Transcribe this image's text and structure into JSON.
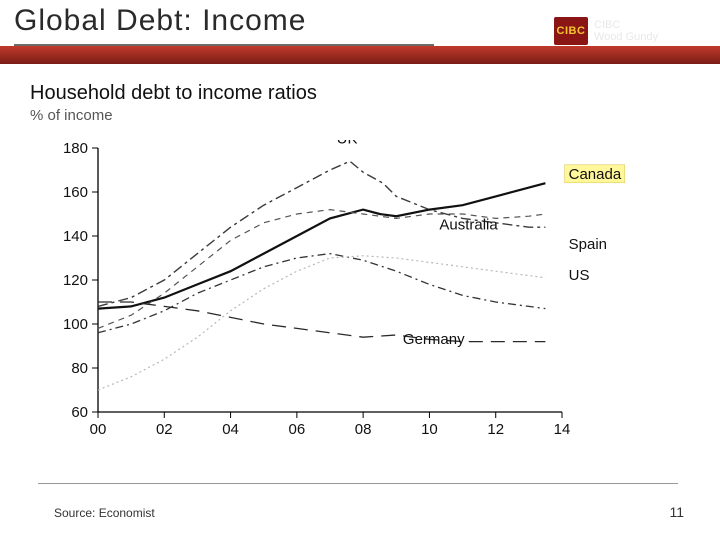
{
  "slide": {
    "title": "Global Debt: Income",
    "logo_text": "CIBC",
    "logo_sub": "Wood Gundy",
    "source": "Source: Economist",
    "page_number": "11"
  },
  "chart": {
    "type": "line",
    "title": "Household debt to income ratios",
    "subtitle": "% of income",
    "background_color": "#ffffff",
    "axis_color": "#000000",
    "xlim": [
      0,
      14
    ],
    "ylim": [
      60,
      180
    ],
    "ytick_step": 20,
    "xtick_step": 2,
    "x_ticks": [
      "00",
      "02",
      "04",
      "06",
      "08",
      "10",
      "12",
      "14"
    ],
    "y_ticks": [
      "60",
      "80",
      "100",
      "120",
      "140",
      "160",
      "180"
    ],
    "label_canada_highlight": true,
    "series": {
      "UK": {
        "label": "UK",
        "color": "#3a3a3a",
        "width": 1.4,
        "dash": "10 4 3 4",
        "label_xy": [
          7.2,
          182
        ],
        "data": [
          [
            0,
            108
          ],
          [
            1,
            112
          ],
          [
            2,
            120
          ],
          [
            3,
            132
          ],
          [
            4,
            144
          ],
          [
            5,
            154
          ],
          [
            6,
            162
          ],
          [
            7,
            170
          ],
          [
            7.6,
            174
          ],
          [
            8,
            169
          ],
          [
            8.6,
            164
          ],
          [
            9,
            158
          ],
          [
            10,
            152
          ],
          [
            11,
            148
          ],
          [
            12,
            146
          ],
          [
            13,
            144
          ],
          [
            13.5,
            144
          ]
        ]
      },
      "Canada": {
        "label": "Canada",
        "color": "#111111",
        "width": 2.2,
        "dash": "",
        "label_xy": [
          14.2,
          166
        ],
        "data": [
          [
            0,
            107
          ],
          [
            1,
            108
          ],
          [
            2,
            112
          ],
          [
            3,
            118
          ],
          [
            4,
            124
          ],
          [
            5,
            132
          ],
          [
            6,
            140
          ],
          [
            7,
            148
          ],
          [
            8,
            152
          ],
          [
            8.5,
            150
          ],
          [
            9,
            149
          ],
          [
            10,
            152
          ],
          [
            11,
            154
          ],
          [
            12,
            158
          ],
          [
            13,
            162
          ],
          [
            13.5,
            164
          ]
        ]
      },
      "Australia": {
        "label": "Australia",
        "color": "#555555",
        "width": 1.2,
        "dash": "6 5",
        "label_xy": [
          10.3,
          143
        ],
        "data": [
          [
            0,
            98
          ],
          [
            1,
            104
          ],
          [
            2,
            114
          ],
          [
            3,
            126
          ],
          [
            4,
            138
          ],
          [
            5,
            146
          ],
          [
            6,
            150
          ],
          [
            7,
            152
          ],
          [
            8,
            150
          ],
          [
            9,
            148
          ],
          [
            10,
            150
          ],
          [
            11,
            150
          ],
          [
            12,
            148
          ],
          [
            13,
            149
          ],
          [
            13.5,
            150
          ]
        ]
      },
      "US": {
        "label": "US",
        "color": "#333333",
        "width": 1.3,
        "dash": "8 4 2 4",
        "label_xy": [
          14.2,
          120
        ],
        "data": [
          [
            0,
            96
          ],
          [
            1,
            100
          ],
          [
            2,
            106
          ],
          [
            3,
            114
          ],
          [
            4,
            120
          ],
          [
            5,
            126
          ],
          [
            6,
            130
          ],
          [
            7,
            132
          ],
          [
            8,
            129
          ],
          [
            9,
            124
          ],
          [
            10,
            118
          ],
          [
            11,
            113
          ],
          [
            12,
            110
          ],
          [
            13,
            108
          ],
          [
            13.5,
            107
          ]
        ]
      },
      "Spain": {
        "label": "Spain",
        "color": "#b8b8b8",
        "width": 1.2,
        "dash": "2 3",
        "label_xy": [
          14.2,
          134
        ],
        "data": [
          [
            0,
            70
          ],
          [
            1,
            76
          ],
          [
            2,
            84
          ],
          [
            3,
            94
          ],
          [
            4,
            106
          ],
          [
            5,
            116
          ],
          [
            6,
            124
          ],
          [
            7,
            130
          ],
          [
            8,
            131
          ],
          [
            9,
            130
          ],
          [
            10,
            128
          ],
          [
            11,
            126
          ],
          [
            12,
            124
          ],
          [
            13,
            122
          ],
          [
            13.5,
            121
          ]
        ]
      },
      "Germany": {
        "label": "Germany",
        "color": "#2a2a2a",
        "width": 1.3,
        "dash": "14 8",
        "label_xy": [
          9.2,
          91
        ],
        "data": [
          [
            0,
            110
          ],
          [
            1,
            110
          ],
          [
            2,
            108
          ],
          [
            3,
            106
          ],
          [
            4,
            103
          ],
          [
            5,
            100
          ],
          [
            6,
            98
          ],
          [
            7,
            96
          ],
          [
            8,
            94
          ],
          [
            9,
            95
          ],
          [
            10,
            93
          ],
          [
            11,
            92
          ],
          [
            12,
            92
          ],
          [
            13,
            92
          ],
          [
            13.5,
            92
          ]
        ]
      }
    }
  }
}
